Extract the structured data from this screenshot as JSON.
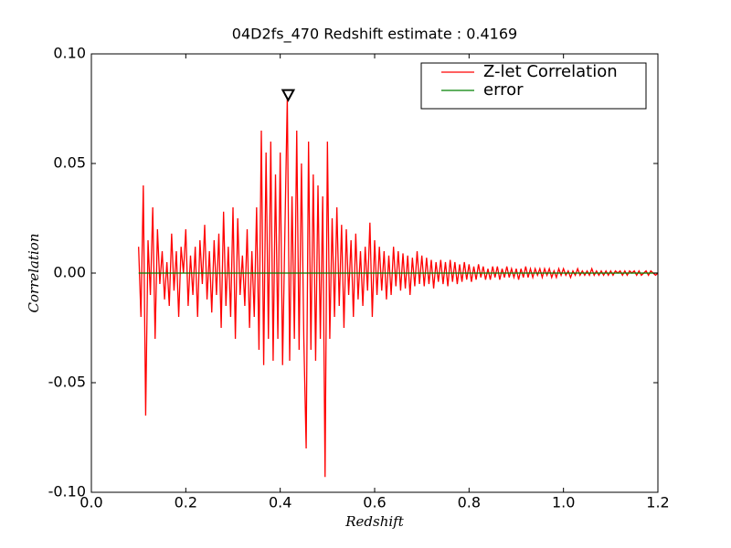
{
  "chart_data": {
    "type": "line",
    "title": "04D2fs_470 Redshift estimate : 0.4169",
    "xlabel": "Redshift",
    "ylabel": "Correlation",
    "xlim": [
      0,
      1.2
    ],
    "ylim": [
      -0.1,
      0.1
    ],
    "xticks": [
      {
        "value": 0,
        "label": "0.0"
      },
      0.2,
      0.4,
      0.6,
      0.8,
      {
        "value": 1,
        "label": "1.0"
      },
      1.2
    ],
    "yticks": [
      {
        "value": -0.1,
        "label": "-0.10"
      },
      -0.05,
      {
        "value": 0,
        "label": "0.00"
      },
      0.05,
      {
        "value": 0.1,
        "label": "0.10"
      }
    ],
    "legend": "upper right",
    "peak": {
      "x": 0.4169,
      "y": 0.081
    },
    "series": [
      {
        "name": "Z-let Correlation",
        "color": "#ff0000",
        "x": [
          0.1,
          0.105,
          0.11,
          0.115,
          0.12,
          0.125,
          0.13,
          0.135,
          0.14,
          0.145,
          0.15,
          0.155,
          0.16,
          0.165,
          0.17,
          0.175,
          0.18,
          0.185,
          0.19,
          0.195,
          0.2,
          0.205,
          0.21,
          0.215,
          0.22,
          0.225,
          0.23,
          0.235,
          0.24,
          0.245,
          0.25,
          0.255,
          0.26,
          0.265,
          0.27,
          0.275,
          0.28,
          0.285,
          0.29,
          0.295,
          0.3,
          0.305,
          0.31,
          0.315,
          0.32,
          0.325,
          0.33,
          0.335,
          0.34,
          0.345,
          0.35,
          0.355,
          0.36,
          0.365,
          0.37,
          0.375,
          0.38,
          0.385,
          0.39,
          0.395,
          0.4,
          0.405,
          0.41,
          0.415,
          0.42,
          0.425,
          0.43,
          0.435,
          0.44,
          0.445,
          0.45,
          0.455,
          0.46,
          0.465,
          0.47,
          0.475,
          0.48,
          0.485,
          0.49,
          0.495,
          0.5,
          0.505,
          0.51,
          0.515,
          0.52,
          0.525,
          0.53,
          0.535,
          0.54,
          0.545,
          0.55,
          0.555,
          0.56,
          0.565,
          0.57,
          0.575,
          0.58,
          0.585,
          0.59,
          0.595,
          0.6,
          0.605,
          0.61,
          0.615,
          0.62,
          0.625,
          0.63,
          0.635,
          0.64,
          0.645,
          0.65,
          0.655,
          0.66,
          0.665,
          0.67,
          0.675,
          0.68,
          0.685,
          0.69,
          0.695,
          0.7,
          0.705,
          0.71,
          0.715,
          0.72,
          0.725,
          0.73,
          0.735,
          0.74,
          0.745,
          0.75,
          0.755,
          0.76,
          0.765,
          0.77,
          0.775,
          0.78,
          0.785,
          0.79,
          0.795,
          0.8,
          0.805,
          0.81,
          0.815,
          0.82,
          0.825,
          0.83,
          0.835,
          0.84,
          0.845,
          0.85,
          0.855,
          0.86,
          0.865,
          0.87,
          0.875,
          0.88,
          0.885,
          0.89,
          0.895,
          0.9,
          0.905,
          0.91,
          0.915,
          0.92,
          0.925,
          0.93,
          0.935,
          0.94,
          0.945,
          0.95,
          0.955,
          0.96,
          0.965,
          0.97,
          0.975,
          0.98,
          0.985,
          0.99,
          0.995,
          1.0,
          1.005,
          1.01,
          1.015,
          1.02,
          1.025,
          1.03,
          1.035,
          1.04,
          1.045,
          1.05,
          1.055,
          1.06,
          1.065,
          1.07,
          1.075,
          1.08,
          1.085,
          1.09,
          1.095,
          1.1,
          1.105,
          1.11,
          1.115,
          1.12,
          1.125,
          1.13,
          1.135,
          1.14,
          1.145,
          1.15,
          1.155,
          1.16,
          1.165,
          1.17,
          1.175,
          1.18,
          1.185,
          1.19,
          1.195,
          1.2
        ],
        "values": [
          0.012,
          -0.02,
          0.04,
          -0.065,
          0.015,
          -0.01,
          0.03,
          -0.03,
          0.02,
          -0.005,
          0.01,
          -0.012,
          0.005,
          -0.015,
          0.018,
          -0.008,
          0.01,
          -0.02,
          0.012,
          0.0,
          0.02,
          -0.015,
          0.008,
          -0.01,
          0.012,
          -0.02,
          0.015,
          -0.005,
          0.022,
          -0.012,
          0.01,
          -0.018,
          0.015,
          -0.01,
          0.018,
          -0.025,
          0.028,
          -0.015,
          0.012,
          -0.02,
          0.03,
          -0.03,
          0.025,
          -0.01,
          0.008,
          -0.015,
          0.02,
          -0.025,
          0.01,
          -0.02,
          0.03,
          -0.035,
          0.065,
          -0.042,
          0.055,
          -0.03,
          0.06,
          -0.04,
          0.045,
          -0.03,
          0.055,
          -0.042,
          0.02,
          0.08,
          -0.04,
          0.035,
          -0.03,
          0.065,
          -0.035,
          0.05,
          -0.03,
          -0.08,
          0.06,
          -0.035,
          0.045,
          -0.04,
          0.04,
          -0.03,
          0.035,
          -0.093,
          0.06,
          -0.03,
          0.025,
          -0.02,
          0.03,
          -0.015,
          0.022,
          -0.025,
          0.02,
          -0.01,
          0.015,
          -0.02,
          0.018,
          -0.012,
          0.01,
          -0.015,
          0.012,
          -0.008,
          0.023,
          -0.02,
          0.015,
          -0.01,
          0.012,
          -0.008,
          0.01,
          -0.012,
          0.008,
          -0.01,
          0.012,
          -0.006,
          0.01,
          -0.008,
          0.009,
          -0.007,
          0.008,
          -0.01,
          0.007,
          -0.006,
          0.01,
          -0.005,
          0.008,
          -0.006,
          0.007,
          -0.005,
          0.006,
          -0.007,
          0.005,
          -0.004,
          0.006,
          -0.005,
          0.005,
          -0.006,
          0.006,
          -0.004,
          0.005,
          -0.005,
          0.004,
          -0.004,
          0.005,
          -0.003,
          0.004,
          -0.004,
          0.003,
          -0.003,
          0.004,
          -0.002,
          0.003,
          -0.003,
          0.002,
          -0.003,
          0.003,
          -0.002,
          0.003,
          -0.003,
          0.002,
          -0.002,
          0.003,
          -0.002,
          0.002,
          -0.002,
          0.002,
          -0.003,
          0.002,
          -0.002,
          0.003,
          -0.002,
          0.002,
          -0.002,
          0.002,
          -0.001,
          0.002,
          -0.002,
          0.002,
          -0.001,
          0.002,
          -0.002,
          0.001,
          -0.002,
          0.002,
          -0.001,
          0.002,
          -0.001,
          0.001,
          -0.002,
          0.001,
          -0.001,
          0.002,
          -0.001,
          0.001,
          -0.001,
          0.001,
          -0.001,
          0.002,
          -0.001,
          0.001,
          -0.001,
          0.001,
          -0.001,
          0.001,
          -0.001,
          0.001,
          -0.001,
          0.001,
          0.0,
          0.001,
          -0.001,
          0.001,
          -0.001,
          0.001,
          0.0,
          0.001,
          -0.001,
          0.001,
          -0.001,
          0.0,
          0.001,
          -0.001,
          0.001,
          0.0,
          -0.001,
          0.0
        ]
      },
      {
        "name": "error",
        "color": "#008000",
        "x": [
          0.1,
          1.2
        ],
        "values": [
          0,
          0
        ]
      }
    ]
  }
}
